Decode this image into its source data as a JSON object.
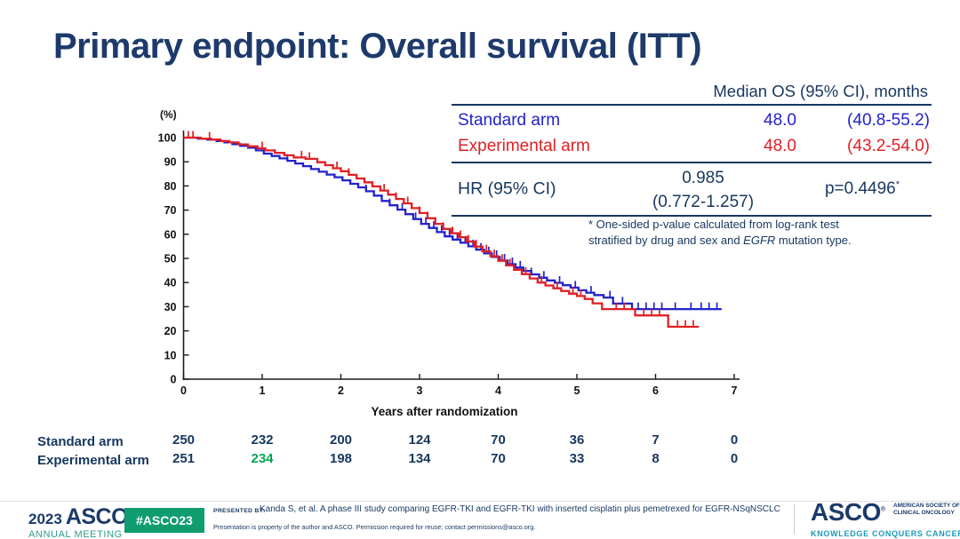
{
  "slide": {
    "title": "Primary endpoint: Overall survival (ITT)"
  },
  "colors": {
    "navy": "#17375E",
    "title_navy": "#1d3a6b",
    "standard_blue": "#2222CC",
    "experimental_red": "#E02024",
    "highlight_green": "#00A651",
    "badge_green": "#0F9D70",
    "teal": "#2E9C8F",
    "teal_blue": "#1A9AB8",
    "axis": "#1a1a1a"
  },
  "summary_table": {
    "header": "Median OS (95% CI), months",
    "rows": [
      {
        "label": "Standard arm",
        "median": "48.0",
        "ci": "(40.8-55.2)"
      },
      {
        "label": "Experimental arm",
        "median": "48.0",
        "ci": "(43.2-54.0)"
      }
    ],
    "hr_label": "HR (95% CI)",
    "hr_value_line1": "0.985",
    "hr_value_line2": "(0.772-1.257)",
    "p_value": "p=0.4496",
    "p_superscript": "*",
    "footnote_line1": "* One-sided p-value calculated from log-rank test",
    "footnote_line2_pre": "stratified by drug and sex and ",
    "footnote_line2_italic": "EGFR",
    "footnote_line2_post": " mutation type."
  },
  "chart_data": {
    "type": "line",
    "subtype": "kaplan-meier-step",
    "title": "Overall survival (ITT)",
    "xlabel": "Years after randomization",
    "ylabel": "(%)",
    "xlim": [
      0,
      7
    ],
    "ylim": [
      0,
      100
    ],
    "xticks": [
      0,
      1,
      2,
      3,
      4,
      5,
      6,
      7
    ],
    "yticks": [
      0,
      10,
      20,
      30,
      40,
      50,
      60,
      70,
      80,
      90,
      100
    ],
    "grid": false,
    "legend_position": "none",
    "series": [
      {
        "name": "Standard arm",
        "color": "#2222CC",
        "points": [
          [
            0,
            100
          ],
          [
            0.18,
            99.6
          ],
          [
            0.3,
            99.2
          ],
          [
            0.42,
            98.6
          ],
          [
            0.52,
            98
          ],
          [
            0.62,
            97.3
          ],
          [
            0.72,
            96.6
          ],
          [
            0.82,
            95.8
          ],
          [
            0.92,
            94.7
          ],
          [
            1.02,
            93.4
          ],
          [
            1.12,
            92.4
          ],
          [
            1.22,
            91.4
          ],
          [
            1.32,
            90.4
          ],
          [
            1.42,
            89.3
          ],
          [
            1.52,
            88.2
          ],
          [
            1.62,
            87
          ],
          [
            1.72,
            85.9
          ],
          [
            1.82,
            84.7
          ],
          [
            1.92,
            83.6
          ],
          [
            2.02,
            82.3
          ],
          [
            2.12,
            80.9
          ],
          [
            2.22,
            79.4
          ],
          [
            2.32,
            77.8
          ],
          [
            2.42,
            76
          ],
          [
            2.52,
            73.8
          ],
          [
            2.62,
            72
          ],
          [
            2.72,
            70.2
          ],
          [
            2.82,
            68.3
          ],
          [
            2.92,
            66.3
          ],
          [
            3.02,
            64.3
          ],
          [
            3.12,
            62.6
          ],
          [
            3.22,
            60.9
          ],
          [
            3.32,
            59.1
          ],
          [
            3.42,
            57.8
          ],
          [
            3.52,
            56.5
          ],
          [
            3.62,
            55
          ],
          [
            3.72,
            53.6
          ],
          [
            3.82,
            52.1
          ],
          [
            3.92,
            50.6
          ],
          [
            4.02,
            49.1
          ],
          [
            4.12,
            47.6
          ],
          [
            4.22,
            46.2
          ],
          [
            4.32,
            44.8
          ],
          [
            4.42,
            43.4
          ],
          [
            4.52,
            42
          ],
          [
            4.62,
            40.9
          ],
          [
            4.72,
            39.9
          ],
          [
            4.82,
            38.9
          ],
          [
            4.92,
            37.9
          ],
          [
            5.02,
            36.8
          ],
          [
            5.12,
            35.8
          ],
          [
            5.22,
            34.8
          ],
          [
            5.34,
            33.8
          ],
          [
            5.46,
            31.3
          ],
          [
            5.7,
            29
          ],
          [
            6.84,
            29
          ]
        ],
        "censor_years": [
          1.32,
          2.32,
          2.62,
          2.78,
          2.95,
          3.08,
          3.18,
          3.28,
          3.38,
          3.48,
          3.58,
          3.68,
          3.78,
          3.88,
          3.98,
          4.08,
          4.18,
          4.28,
          4.42,
          4.58,
          4.78,
          4.98,
          5.18,
          5.42,
          5.58,
          5.78,
          5.88,
          5.98,
          6.08,
          6.25,
          6.45,
          6.58,
          6.68,
          6.78
        ]
      },
      {
        "name": "Experimental arm",
        "color": "#E02024",
        "points": [
          [
            0,
            100
          ],
          [
            0.22,
            99.6
          ],
          [
            0.35,
            99.2
          ],
          [
            0.47,
            98.6
          ],
          [
            0.58,
            98
          ],
          [
            0.7,
            97.2
          ],
          [
            0.82,
            96.4
          ],
          [
            0.94,
            95.6
          ],
          [
            1.04,
            94.7
          ],
          [
            1.16,
            93.7
          ],
          [
            1.28,
            92.7
          ],
          [
            1.4,
            91.8
          ],
          [
            1.55,
            91.2
          ],
          [
            1.7,
            89.8
          ],
          [
            1.8,
            88.6
          ],
          [
            1.9,
            87.3
          ],
          [
            2,
            86.1
          ],
          [
            2.1,
            84.6
          ],
          [
            2.2,
            83.1
          ],
          [
            2.3,
            81.5
          ],
          [
            2.4,
            79.8
          ],
          [
            2.5,
            78.1
          ],
          [
            2.6,
            76.4
          ],
          [
            2.7,
            74.6
          ],
          [
            2.8,
            72.8
          ],
          [
            2.9,
            70.8
          ],
          [
            3,
            68.8
          ],
          [
            3.1,
            66.6
          ],
          [
            3.2,
            64.3
          ],
          [
            3.3,
            62.2
          ],
          [
            3.4,
            60.4
          ],
          [
            3.5,
            58.8
          ],
          [
            3.6,
            57
          ],
          [
            3.7,
            54.9
          ],
          [
            3.8,
            52.9
          ],
          [
            3.9,
            50.9
          ],
          [
            4,
            49
          ],
          [
            4.1,
            47.1
          ],
          [
            4.2,
            45.3
          ],
          [
            4.3,
            43.5
          ],
          [
            4.4,
            41.7
          ],
          [
            4.5,
            40
          ],
          [
            4.6,
            38.8
          ],
          [
            4.7,
            37.6
          ],
          [
            4.8,
            36.5
          ],
          [
            4.9,
            35.4
          ],
          [
            5,
            34.4
          ],
          [
            5.1,
            33.2
          ],
          [
            5.2,
            31.4
          ],
          [
            5.32,
            29
          ],
          [
            5.74,
            26.4
          ],
          [
            6.16,
            21.7
          ],
          [
            6.55,
            21.7
          ]
        ],
        "censor_years": [
          0.06,
          0.12,
          0.33,
          1,
          1.5,
          1.6,
          1.95,
          2.1,
          2.55,
          2.7,
          2.85,
          3,
          3.1,
          3.2,
          3.3,
          3.42,
          3.52,
          3.62,
          3.72,
          3.85,
          3.95,
          4.05,
          4.15,
          4.35,
          4.55,
          4.75,
          4.95,
          5.05,
          5.5,
          5.6,
          5.85,
          5.95,
          6.05,
          6.28,
          6.38,
          6.48
        ]
      }
    ]
  },
  "risk_table": {
    "rows": [
      {
        "label": "Standard arm",
        "counts": [
          "250",
          "232",
          "200",
          "124",
          "70",
          "36",
          "7",
          "0"
        ],
        "highlight_index": -1
      },
      {
        "label": "Experimental arm",
        "counts": [
          "251",
          "234",
          "198",
          "134",
          "70",
          "33",
          "8",
          "0"
        ],
        "highlight_index": 1
      }
    ],
    "highlight_color": "#00A651"
  },
  "footer": {
    "year": "2023",
    "logo_main": "ASCO",
    "logo_reg": "®",
    "logo_sub": "ANNUAL MEETING",
    "badge": "#ASCO23",
    "presented_by_label": "PRESENTED BY:",
    "presented_by_text": "Kanda S, et al. A phase III study comparing EGFR-TKI and EGFR-TKI with inserted cisplatin plus pemetrexed for EGFR-NSqNSCLC",
    "disclaimer": "Presentation is property of the author and ASCO. Permission required for reuse; contact permissions@asco.org.",
    "right_logo": "ASCO",
    "right_logo_reg": "®",
    "right_society_line1": "AMERICAN SOCIETY OF",
    "right_society_line2": "CLINICAL ONCOLOGY",
    "right_tagline": "KNOWLEDGE CONQUERS CANCER"
  }
}
